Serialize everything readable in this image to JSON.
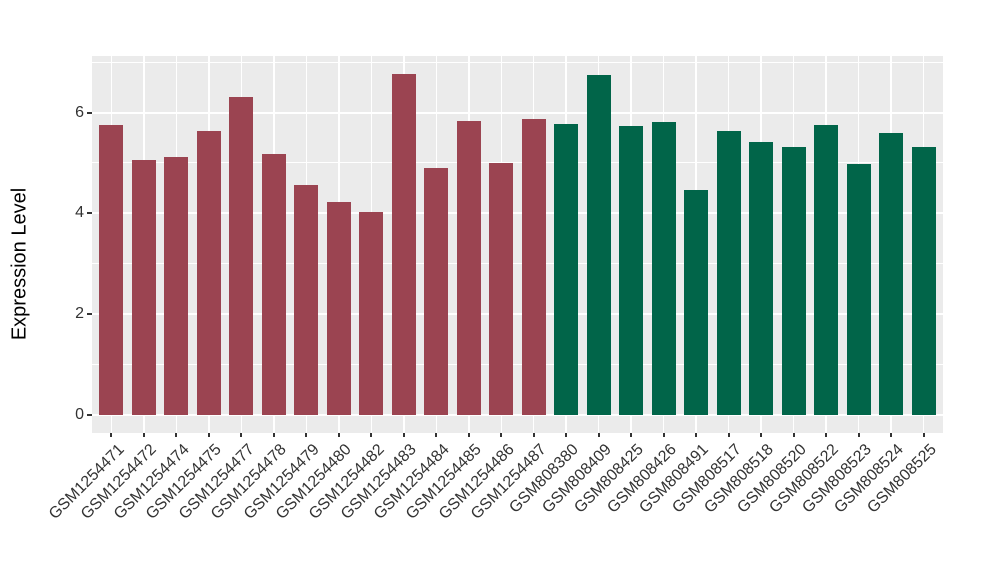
{
  "chart_data": {
    "type": "bar",
    "title": "",
    "xlabel": "",
    "ylabel": "Expression Level",
    "ylim": [
      -0.35,
      7.12
    ],
    "yticks": [
      0,
      2,
      4,
      6
    ],
    "yticks_minor": [
      1,
      3,
      5,
      7
    ],
    "grid": "major and minor horizontal white lines, vertical white line at each category",
    "legend_position": "none",
    "categories": [
      "GSM1254471",
      "GSM1254472",
      "GSM1254474",
      "GSM1254475",
      "GSM1254477",
      "GSM1254478",
      "GSM1254479",
      "GSM1254480",
      "GSM1254482",
      "GSM1254483",
      "GSM1254484",
      "GSM1254485",
      "GSM1254486",
      "GSM1254487",
      "GSM808380",
      "GSM808409",
      "GSM808425",
      "GSM808426",
      "GSM808491",
      "GSM808517",
      "GSM808518",
      "GSM808520",
      "GSM808522",
      "GSM808523",
      "GSM808524",
      "GSM808525"
    ],
    "values": [
      5.75,
      5.06,
      5.12,
      5.63,
      6.3,
      5.17,
      4.56,
      4.23,
      4.02,
      6.76,
      4.9,
      5.83,
      4.99,
      5.87,
      5.77,
      6.75,
      5.73,
      5.82,
      4.47,
      5.64,
      5.42,
      5.31,
      5.75,
      4.98,
      5.6,
      5.31
    ],
    "bar_groups": [
      "GSM1254",
      "GSM1254",
      "GSM1254",
      "GSM1254",
      "GSM1254",
      "GSM1254",
      "GSM1254",
      "GSM1254",
      "GSM1254",
      "GSM1254",
      "GSM1254",
      "GSM1254",
      "GSM1254",
      "GSM1254",
      "GSM808",
      "GSM808",
      "GSM808",
      "GSM808",
      "GSM808",
      "GSM808",
      "GSM808",
      "GSM808",
      "GSM808",
      "GSM808",
      "GSM808",
      "GSM808"
    ],
    "group_colors": {
      "GSM1254": "#9B4451",
      "GSM808": "#016549"
    },
    "colors": {
      "panel_background": "#EBEBEB",
      "gridline": "#FFFFFF",
      "axis_text": "#333333",
      "axis_title": "#000000",
      "tick_mark": "#333333"
    }
  }
}
